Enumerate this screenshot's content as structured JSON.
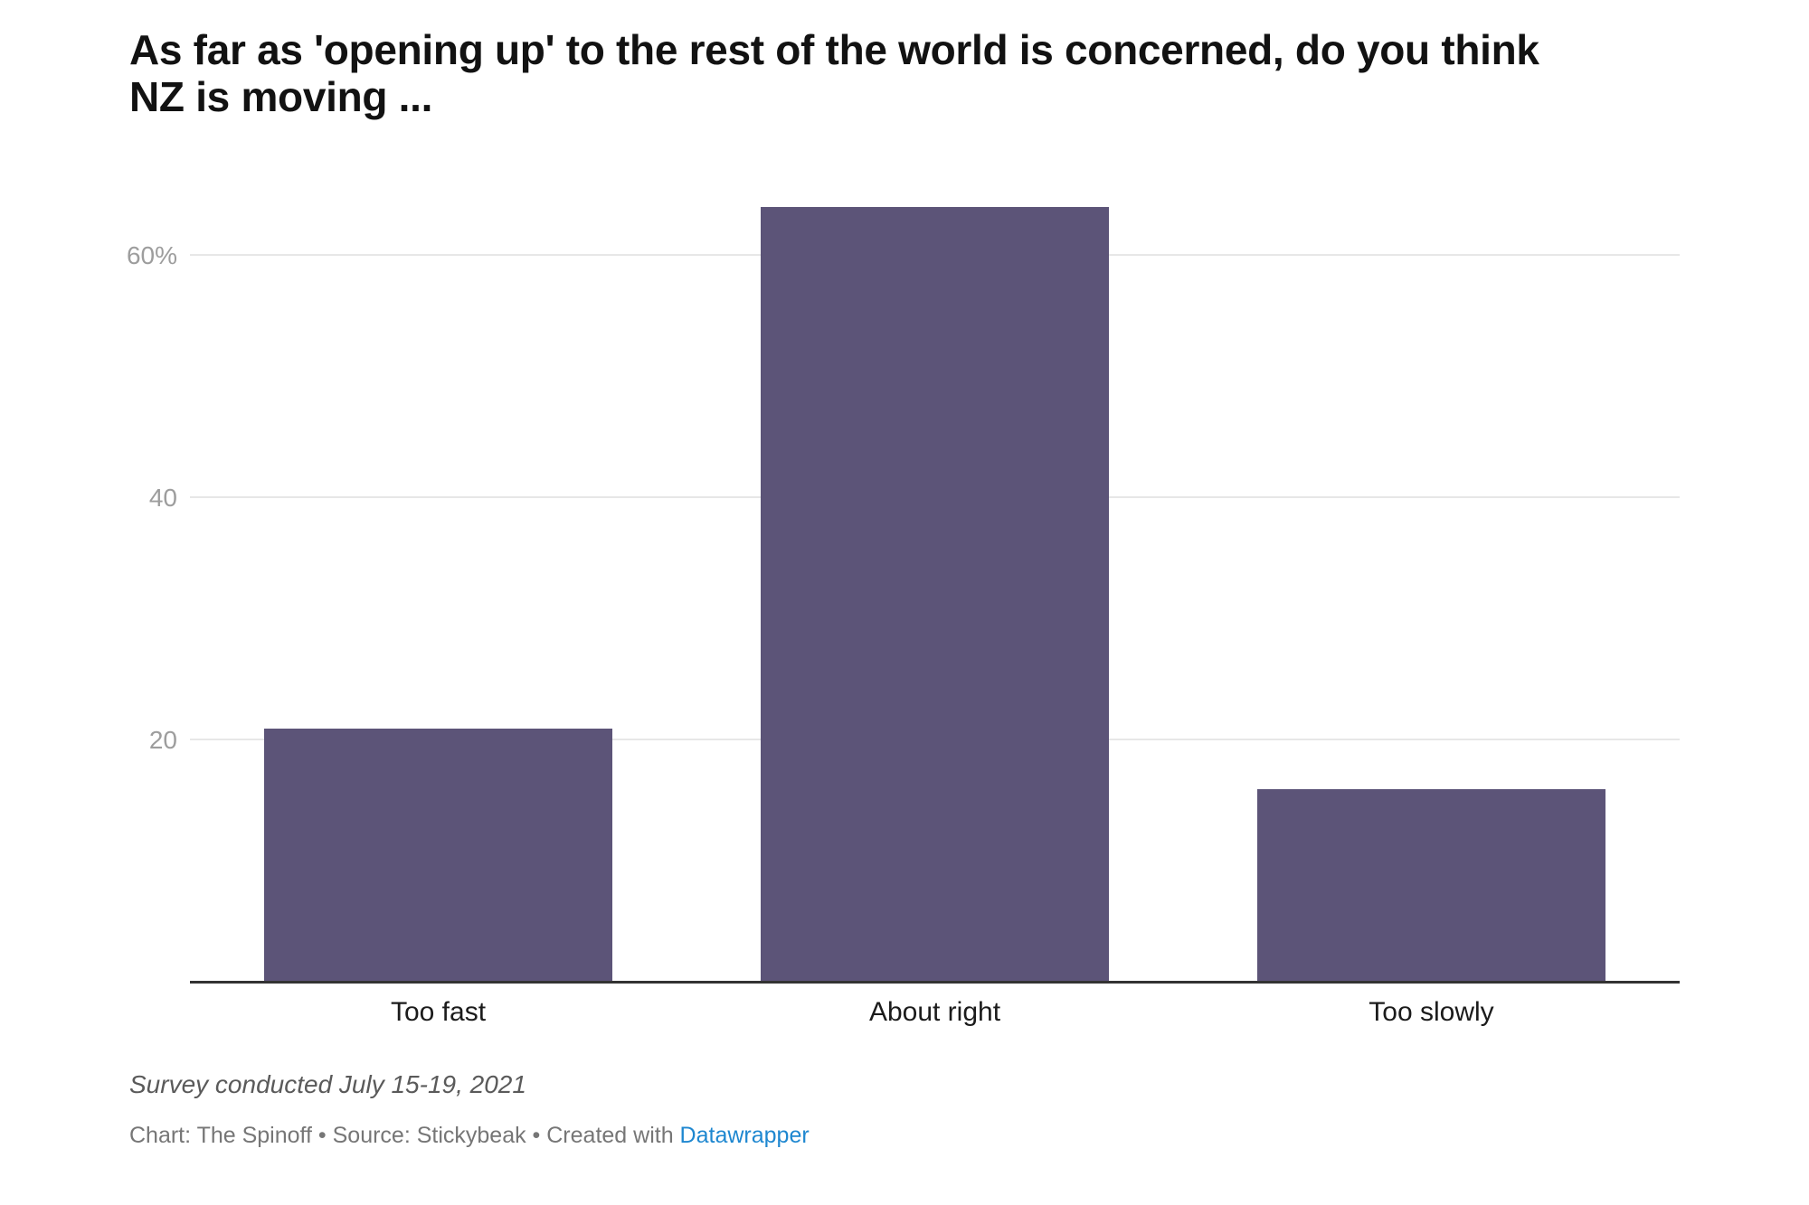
{
  "chart_data": {
    "type": "bar",
    "title": "As far as 'opening up' to the rest of the world is concerned, do you think NZ is moving ...",
    "categories": [
      "Too fast",
      "About right",
      "Too slowly"
    ],
    "values": [
      21,
      64,
      16
    ],
    "xlabel": "",
    "ylabel": "",
    "ylim": [
      0,
      64.33
    ],
    "yticks": [
      {
        "value": 20,
        "label": "20"
      },
      {
        "value": 40,
        "label": "40"
      },
      {
        "value": 60,
        "label": "60%"
      }
    ],
    "grid": true,
    "legend": "none",
    "bar_color": "#5c5478"
  },
  "footer": {
    "note": "Survey conducted July 15-19, 2021",
    "byline_prefix": "Chart: The Spinoff • Source: Stickybeak • Created with ",
    "byline_link": "Datawrapper"
  },
  "colors": {
    "bar": "#5c5478",
    "link": "#1e87d0",
    "gridline": "#e7e7e7",
    "axis_line": "#333333",
    "tick_label": "#9d9d9d"
  }
}
